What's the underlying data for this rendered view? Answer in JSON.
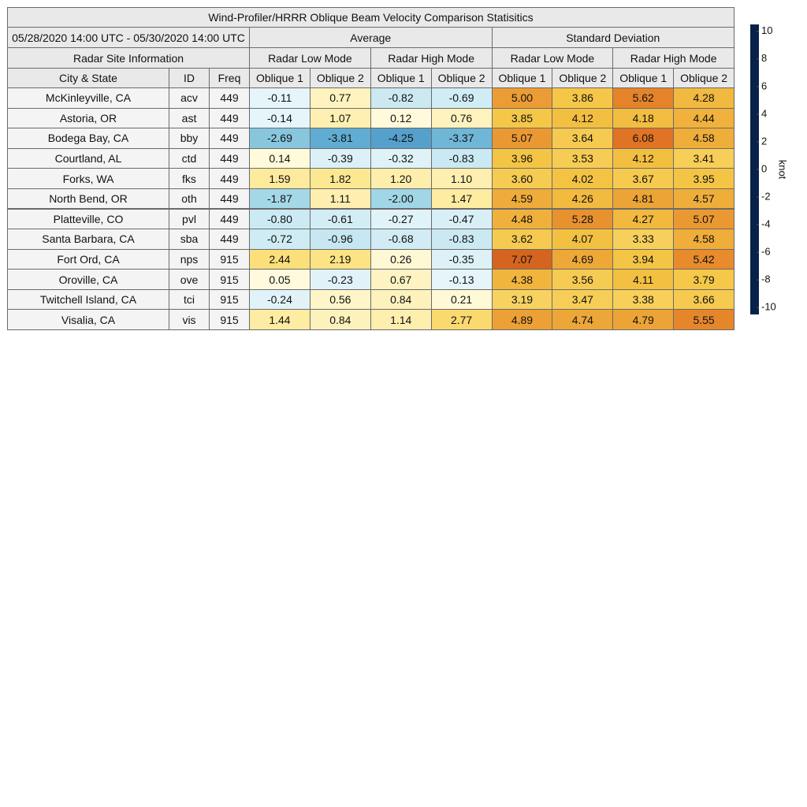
{
  "table": {
    "title": "Wind-Profiler/HRRR Oblique Beam Velocity Comparison Statisitics",
    "period": "05/28/2020 14:00 UTC - 05/30/2020 14:00 UTC",
    "groups": [
      "Average",
      "Standard Deviation"
    ],
    "site_info": "Radar Site Information",
    "modes": [
      "Radar Low Mode",
      "Radar High Mode",
      "Radar Low Mode",
      "Radar High Mode"
    ],
    "columns": [
      "City & State",
      "ID",
      "Freq",
      "Oblique 1",
      "Oblique 2",
      "Oblique 1",
      "Oblique 2",
      "Oblique 1",
      "Oblique 2",
      "Oblique 1",
      "Oblique 2"
    ],
    "rows": [
      [
        "McKinleyville, CA",
        "acv",
        "449",
        "-0.11",
        "0.77",
        "-0.82",
        "-0.69",
        "5.00",
        "3.86",
        "5.62",
        "4.28"
      ],
      [
        "Astoria, OR",
        "ast",
        "449",
        "-0.14",
        "1.07",
        "0.12",
        "0.76",
        "3.85",
        "4.12",
        "4.18",
        "4.44"
      ],
      [
        "Bodega Bay, CA",
        "bby",
        "449",
        "-2.69",
        "-3.81",
        "-4.25",
        "-3.37",
        "5.07",
        "3.64",
        "6.08",
        "4.58"
      ],
      [
        "Courtland, AL",
        "ctd",
        "449",
        "0.14",
        "-0.39",
        "-0.32",
        "-0.83",
        "3.96",
        "3.53",
        "4.12",
        "3.41"
      ],
      [
        "Forks, WA",
        "fks",
        "449",
        "1.59",
        "1.82",
        "1.20",
        "1.10",
        "3.60",
        "4.02",
        "3.67",
        "3.95"
      ],
      [
        "North Bend, OR",
        "oth",
        "449",
        "-1.87",
        "1.11",
        "-2.00",
        "1.47",
        "4.59",
        "4.26",
        "4.81",
        "4.57"
      ],
      [
        "Platteville, CO",
        "pvl",
        "449",
        "-0.80",
        "-0.61",
        "-0.27",
        "-0.47",
        "4.48",
        "5.28",
        "4.27",
        "5.07"
      ],
      [
        "Santa Barbara, CA",
        "sba",
        "449",
        "-0.72",
        "-0.96",
        "-0.68",
        "-0.83",
        "3.62",
        "4.07",
        "3.33",
        "4.58"
      ],
      [
        "Fort Ord, CA",
        "nps",
        "915",
        "2.44",
        "2.19",
        "0.26",
        "-0.35",
        "7.07",
        "4.69",
        "3.94",
        "5.42"
      ],
      [
        "Oroville, CA",
        "ove",
        "915",
        "0.05",
        "-0.23",
        "0.67",
        "-0.13",
        "4.38",
        "3.56",
        "4.11",
        "3.79"
      ],
      [
        "Twitchell Island, CA",
        "tci",
        "915",
        "-0.24",
        "0.56",
        "0.84",
        "0.21",
        "3.19",
        "3.47",
        "3.38",
        "3.66"
      ],
      [
        "Visalia, CA",
        "vis",
        "915",
        "1.44",
        "0.84",
        "1.14",
        "2.77",
        "4.89",
        "4.74",
        "4.79",
        "5.55"
      ]
    ]
  },
  "colorbar": {
    "label": "knot",
    "ylim": [
      -10.5,
      10.5
    ],
    "yticks": [
      10,
      8,
      6,
      4,
      2,
      0,
      -2,
      -4,
      -6,
      -8,
      -10
    ],
    "colorscale": [
      [
        -10.5,
        "#08214a"
      ],
      [
        -8,
        "#184a8c"
      ],
      [
        -6,
        "#2f6fb0"
      ],
      [
        -4,
        "#5aa8d0"
      ],
      [
        -2,
        "#a0d6e6"
      ],
      [
        0,
        "#eaf7fb"
      ],
      [
        0,
        "#fffbe0"
      ],
      [
        2,
        "#fde68a"
      ],
      [
        4,
        "#f4c443"
      ],
      [
        6,
        "#e27424"
      ],
      [
        8,
        "#c8561a"
      ],
      [
        10.5,
        "#8a2b0c"
      ]
    ]
  }
}
